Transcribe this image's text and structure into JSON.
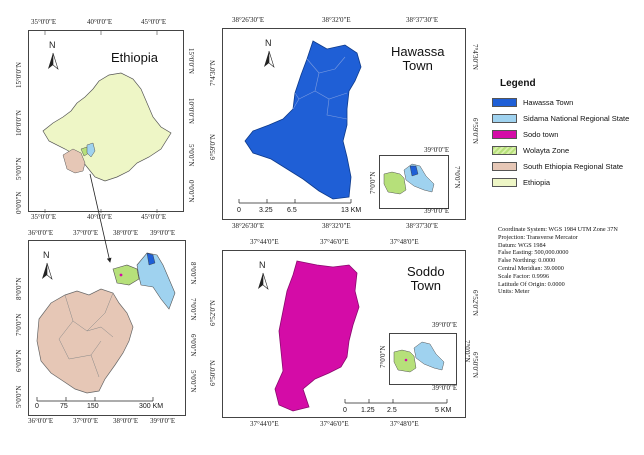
{
  "ethiopia_map": {
    "title": "Ethiopia",
    "north": "N",
    "top_ticks": [
      "35°0'0\"E",
      "40°0'0\"E",
      "45°0'0\"E"
    ],
    "bottom_ticks": [
      "35°0'0\"E",
      "40°0'0\"E",
      "45°0'0\"E"
    ],
    "left_ticks": [
      "15°0'0\"N",
      "10°0'0\"N",
      "5°0'0\"N",
      "0°0'0\"N"
    ],
    "right_ticks": [
      "15°0'0\"N",
      "10°0'0\"N",
      "5°0'0\"N",
      "0°0'0\"N"
    ]
  },
  "south_map": {
    "north": "N",
    "top_ticks": [
      "36°0'0\"E",
      "37°0'0\"E",
      "38°0'0\"E",
      "39°0'0\"E"
    ],
    "bottom_ticks": [
      "36°0'0\"E",
      "37°0'0\"E",
      "38°0'0\"E",
      "39°0'0\"E"
    ],
    "left_ticks": [
      "8°0'0\"N",
      "7°0'0\"N",
      "6°0'0\"N",
      "5°0'0\"N"
    ],
    "right_ticks": [
      "8°0'0\"N",
      "7°0'0\"N",
      "6°0'0\"N",
      "5°0'0\"N"
    ],
    "scale": [
      "0",
      "75",
      "150",
      "300 KM"
    ]
  },
  "hawassa_map": {
    "title": "Hawassa\nTown",
    "north": "N",
    "top_ticks": [
      "38°26'30\"E",
      "38°32'0\"E",
      "38°37'30\"E"
    ],
    "bottom_ticks": [
      "38°26'30\"E",
      "38°32'0\"E",
      "38°37'30\"E"
    ],
    "left_ticks": [
      "7°4'30\"N",
      "6°59'0\"N"
    ],
    "right_ticks": [
      "7°4'30\"N",
      "6°59'0\"N"
    ],
    "scale": [
      "0",
      "3.25",
      "6.5",
      "13 KM"
    ],
    "inset_top": "39°0'0\"E",
    "inset_bottom": "39°0'0\"E",
    "inset_side": "7°0'0\"N"
  },
  "soddo_map": {
    "title": "Soddo\nTown",
    "north": "N",
    "top_ticks": [
      "37°44'0\"E",
      "37°46'0\"E",
      "37°48'0\"E"
    ],
    "bottom_ticks": [
      "37°44'0\"E",
      "37°46'0\"E",
      "37°48'0\"E"
    ],
    "left_ticks": [
      "6°52'0\"N",
      "6°50'0\"N"
    ],
    "right_ticks": [
      "6°52'0\"N",
      "6°50'0\"N"
    ],
    "scale": [
      "0",
      "1.25",
      "2.5",
      "5 KM"
    ],
    "inset_top": "39°0'0\"E",
    "inset_bottom": "39°0'0\"E",
    "inset_side": "7°0'0\"N"
  },
  "legend": {
    "title": "Legend",
    "items": [
      {
        "label": "Hawassa Town",
        "color": "#1f5fd6"
      },
      {
        "label": "Sidama National Regional State",
        "color": "#9fd2ef"
      },
      {
        "label": "Sodo town",
        "color": "#d40ca7"
      },
      {
        "label": "Wolayta Zone",
        "color": "#b6e07a"
      },
      {
        "label": "South Ethiopia Regional State",
        "color": "#e6c7b6"
      },
      {
        "label": "Ethiopia",
        "color": "#eef6c6"
      }
    ]
  },
  "projection_info": [
    "Coordinate System: WGS 1984 UTM Zone 37N",
    "Projection: Transverse Mercator",
    "Datum: WGS 1984",
    "False Easting: 500,000.0000",
    "False Northing: 0.0000",
    "Central Meridian: 39.0000",
    "Scale Factor: 0.9996",
    "Latitude Of Origin: 0.0000",
    "Units: Meter"
  ]
}
